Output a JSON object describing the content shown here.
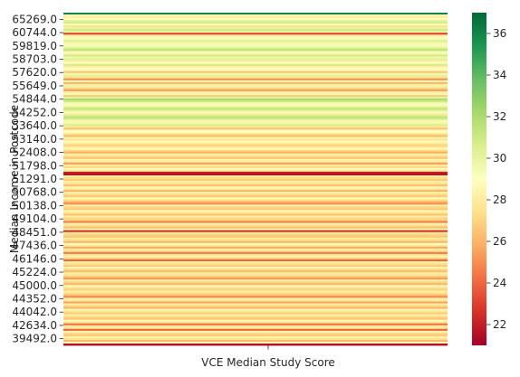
{
  "chart_data": {
    "type": "heatmap",
    "xlabel": "VCE Median Study Score",
    "ylabel": "Median Income in Postcode",
    "x_categories": [
      ""
    ],
    "y_tick_labels": [
      "65269.0",
      "60744.0",
      "59819.0",
      "58703.0",
      "57620.0",
      "55649.0",
      "54844.0",
      "54252.0",
      "53640.0",
      "53140.0",
      "52408.0",
      "51798.0",
      "51291.0",
      "50768.0",
      "50138.0",
      "49104.0",
      "48451.0",
      "47436.0",
      "46146.0",
      "45224.0",
      "45000.0",
      "44352.0",
      "44042.0",
      "42634.0",
      "39492.0"
    ],
    "colorbar": {
      "vmin": 21,
      "vmax": 37,
      "ticks": [
        22,
        24,
        26,
        28,
        30,
        32,
        34,
        36
      ],
      "colormap": "RdYlGn"
    },
    "row_values": [
      36,
      28.5,
      28.2,
      29,
      30.2,
      30.8,
      28.9,
      27.5,
      30,
      31,
      29.8,
      23,
      28,
      28.8,
      29.3,
      30.5,
      29.6,
      28.7,
      29.4,
      30.6,
      31.5,
      29.2,
      28.4,
      30.9,
      29.7,
      30.3,
      28.1,
      29.1,
      30.7,
      27.9,
      29,
      28.6,
      26.5,
      29.6,
      30.1,
      27.4,
      25,
      28.9,
      26,
      28.2,
      29.8,
      27,
      25.5,
      28.3,
      29.4,
      26.8,
      30.2,
      32,
      31,
      29.5,
      28.7,
      30,
      31.2,
      30.4,
      29.3,
      28,
      30.8,
      31.5,
      30.2,
      28.6,
      29.7,
      30.5,
      27.8,
      26.5,
      28.9,
      29.1,
      27.3,
      26.2,
      28.5,
      27.6,
      29.2,
      28,
      26.9,
      27.7,
      28.8,
      27.1,
      25.8,
      28.3,
      27.5,
      26.4,
      28.6,
      27.9,
      25.3,
      28.1,
      27.2,
      28.7,
      27.8,
      22,
      21.5,
      28,
      27.4,
      26.8,
      28.2,
      27.6,
      26.3,
      28.5,
      27.9,
      25.9,
      28.4,
      27.3,
      26.6,
      28.8,
      27.5,
      26.1,
      25,
      28.3,
      27.1,
      26.7,
      28.6,
      27.7,
      26.4,
      28,
      27.2,
      26.9,
      24.5,
      28.4,
      27.6,
      26.2,
      28.7,
      22.5,
      27.8,
      27,
      26.5,
      28.1,
      27.4,
      26,
      28.9,
      27.9,
      25.6,
      28.2,
      27.3,
      24.5,
      27.7,
      28.5,
      26.8,
      24,
      28.3,
      27.5,
      26.7,
      28.6,
      27.2,
      26.3,
      28,
      27.8,
      26.6,
      25.2,
      28.4,
      27,
      26.1,
      28.8,
      27.6,
      26.9,
      28.2,
      27.4,
      26.4,
      24.8,
      28.5,
      27.9,
      25.5,
      28.1,
      27.3,
      26,
      28.7,
      27.7,
      26.8,
      28.3,
      27.1,
      26.5,
      28.9,
      27.5,
      24.2,
      28,
      27.8,
      23.8,
      28.6,
      27.2,
      26.6,
      28.4,
      27.6,
      26.2,
      28.8,
      21.5
    ]
  }
}
